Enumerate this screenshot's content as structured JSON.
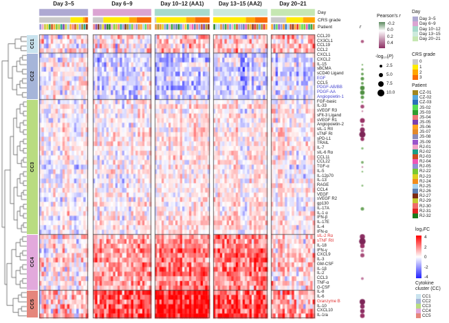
{
  "figure": {
    "group_titles": [
      "Day 3~5",
      "Day 6~9",
      "Day 10~12 (AA1)",
      "Day 13~15 (AA2)",
      "Day 20~21"
    ],
    "annotation_labels": {
      "day": "Day",
      "crs": "CRS grade",
      "patient": "Patient"
    },
    "r_column_header": "r",
    "day_colors": [
      "#aea9d2",
      "#dba4d2",
      "#a7dacc",
      "#cdeadd",
      "#c6e7b2"
    ],
    "crs_colors": {
      "0": "#c9c9c9",
      "1": "#ffec00",
      "2": "#ffa500",
      "3": "#f96b05"
    },
    "clusters": [
      {
        "id": "CC1",
        "color": "#c9e3ee",
        "start": 0,
        "end": 4
      },
      {
        "id": "CC2",
        "color": "#a6b5d9",
        "start": 4,
        "end": 14
      },
      {
        "id": "CC3",
        "color": "#b9dc81",
        "start": 14,
        "end": 43
      },
      {
        "id": "CC4",
        "color": "#e2a9dc",
        "start": 43,
        "end": 55
      },
      {
        "id": "CC5",
        "color": "#e5867c",
        "start": 55,
        "end": 61
      }
    ],
    "rows": [
      {
        "label": "CCL20",
        "color": "#1a1a1a",
        "dot": null
      },
      {
        "label": "CX3CL1",
        "color": "#1a1a1a",
        "dot": {
          "fill": "#b05c85",
          "d": 4.5
        }
      },
      {
        "label": "CCL19",
        "color": "#1a1a1a",
        "dot": null
      },
      {
        "label": "CCL2",
        "color": "#1a1a1a",
        "dot": null
      },
      {
        "label": "CXCL1",
        "color": "#1a1a1a",
        "dot": null
      },
      {
        "label": "CXCL2",
        "color": "#1a1a1a",
        "dot": null
      },
      {
        "label": "IL-15",
        "color": "#1a1a1a",
        "dot": {
          "fill": "#8fbf7f",
          "d": 2.5
        }
      },
      {
        "label": "sBCMA",
        "color": "#1a1a1a",
        "dot": {
          "fill": "#7fb070",
          "d": 3.5
        }
      },
      {
        "label": "sCD40 Ligand",
        "color": "#1a1a1a",
        "dot": {
          "fill": "#6da55e",
          "d": 4
        }
      },
      {
        "label": "EGF",
        "color": "#4343cf",
        "dot": {
          "fill": "#5f9e50",
          "d": 5
        }
      },
      {
        "label": "CCL5",
        "color": "#1a1a1a",
        "dot": {
          "fill": "#6da55e",
          "d": 4
        }
      },
      {
        "label": "PDGF-AB/BB",
        "color": "#4343cf",
        "dot": {
          "fill": "#4f8f42",
          "d": 6.5
        }
      },
      {
        "label": "PDGF-AA",
        "color": "#4343cf",
        "dot": {
          "fill": "#4f8f42",
          "d": 6.5
        }
      },
      {
        "label": "Angiopoietin-1",
        "color": "#4343cf",
        "dot": {
          "fill": "#5f9e50",
          "d": 5
        }
      },
      {
        "label": "FGF-basic",
        "color": "#1a1a1a",
        "dot": {
          "fill": "#8fbf7f",
          "d": 3
        }
      },
      {
        "label": "IL-33",
        "color": "#1a1a1a",
        "dot": {
          "fill": "#a84f7a",
          "d": 5.5
        }
      },
      {
        "label": "sVEGF R3",
        "color": "#1a1a1a",
        "dot": {
          "fill": "#c98aa8",
          "d": 2.5
        }
      },
      {
        "label": "sFlt-3 Ligand",
        "color": "#1a1a1a",
        "dot": null
      },
      {
        "label": "sVEGF R1",
        "color": "#1a1a1a",
        "dot": {
          "fill": "#993366",
          "d": 7
        }
      },
      {
        "label": "Angiopoietin-2",
        "color": "#1a1a1a",
        "dot": {
          "fill": "#b05c85",
          "d": 3.5
        }
      },
      {
        "label": "sIL-1 RII",
        "color": "#1a1a1a",
        "dot": {
          "fill": "#8c2f63",
          "d": 7
        }
      },
      {
        "label": "sTNF RI",
        "color": "#1a1a1a",
        "dot": {
          "fill": "#7c2556",
          "d": 9
        }
      },
      {
        "label": "sPD-L1",
        "color": "#1a1a1a",
        "dot": {
          "fill": "#993366",
          "d": 5.5
        }
      },
      {
        "label": "TRAIL",
        "color": "#1a1a1a",
        "dot": null
      },
      {
        "label": "IL-7",
        "color": "#1a1a1a",
        "dot": {
          "fill": "#8fbf7f",
          "d": 3.5
        }
      },
      {
        "label": "sIL-6 Rα",
        "color": "#1a1a1a",
        "dot": null
      },
      {
        "label": "CCL11",
        "color": "#1a1a1a",
        "dot": null
      },
      {
        "label": "CCL22",
        "color": "#1a1a1a",
        "dot": {
          "fill": "#7fb070",
          "d": 4
        }
      },
      {
        "label": "TGF-α",
        "color": "#1a1a1a",
        "dot": {
          "fill": "#c98aa8",
          "d": 2.5
        }
      },
      {
        "label": "IL-5",
        "color": "#1a1a1a",
        "dot": {
          "fill": "#8fbf7f",
          "d": 2.5
        }
      },
      {
        "label": "IL-12p70",
        "color": "#1a1a1a",
        "dot": null
      },
      {
        "label": "IL-13",
        "color": "#1a1a1a",
        "dot": null
      },
      {
        "label": "RAGE",
        "color": "#1a1a1a",
        "dot": {
          "fill": "#8fbf7f",
          "d": 3
        }
      },
      {
        "label": "CCL4",
        "color": "#1a1a1a",
        "dot": null
      },
      {
        "label": "VEGF",
        "color": "#1a1a1a",
        "dot": null
      },
      {
        "label": "sVEGF R2",
        "color": "#1a1a1a",
        "dot": null
      },
      {
        "label": "gp130",
        "color": "#1a1a1a",
        "dot": null
      },
      {
        "label": "IL-17A",
        "color": "#1a1a1a",
        "dot": {
          "fill": "#6da55e",
          "d": 5
        }
      },
      {
        "label": "IL-1 α",
        "color": "#1a1a1a",
        "dot": null
      },
      {
        "label": "IFN-β",
        "color": "#1a1a1a",
        "dot": null
      },
      {
        "label": "IL-17E",
        "color": "#1a1a1a",
        "dot": null
      },
      {
        "label": "IL-4",
        "color": "#1a1a1a",
        "dot": null
      },
      {
        "label": "IFN-α",
        "color": "#1a1a1a",
        "dot": null
      },
      {
        "label": "sIL-2 Rα",
        "color": "#e03030",
        "dot": {
          "fill": "#8c2f63",
          "d": 7.5
        }
      },
      {
        "label": "sTNF RII",
        "color": "#e03030",
        "dot": {
          "fill": "#7c2556",
          "d": 9.5
        }
      },
      {
        "label": "IL-18",
        "color": "#1a1a1a",
        "dot": {
          "fill": "#993366",
          "d": 6.5
        }
      },
      {
        "label": "IFN-γ",
        "color": "#1a1a1a",
        "dot": {
          "fill": "#c27ba0",
          "d": 4.5
        }
      },
      {
        "label": "CXCL9",
        "color": "#1a1a1a",
        "dot": {
          "fill": "#a84f7a",
          "d": 6
        }
      },
      {
        "label": "IL-3",
        "color": "#1a1a1a",
        "dot": null
      },
      {
        "label": "GM-CSF",
        "color": "#1a1a1a",
        "dot": null
      },
      {
        "label": "IL-1β",
        "color": "#1a1a1a",
        "dot": null
      },
      {
        "label": "IL-2",
        "color": "#1a1a1a",
        "dot": null
      },
      {
        "label": "CCL3",
        "color": "#1a1a1a",
        "dot": {
          "fill": "#c27ba0",
          "d": 4
        }
      },
      {
        "label": "TNF-α",
        "color": "#1a1a1a",
        "dot": null
      },
      {
        "label": "G-CSF",
        "color": "#1a1a1a",
        "dot": null
      },
      {
        "label": "IL-8",
        "color": "#1a1a1a",
        "dot": null
      },
      {
        "label": "IL-6",
        "color": "#1a1a1a",
        "dot": null
      },
      {
        "label": "Granzyme B",
        "color": "#e03030",
        "dot": {
          "fill": "#7c2556",
          "d": 8
        }
      },
      {
        "label": "IL-10",
        "color": "#1a1a1a",
        "dot": {
          "fill": "#8c2f63",
          "d": 6.5
        }
      },
      {
        "label": "CXCL10",
        "color": "#1a1a1a",
        "dot": {
          "fill": "#8c2f63",
          "d": 6.5
        }
      },
      {
        "label": "IL-1ra",
        "color": "#1a1a1a",
        "dot": {
          "fill": "#993366",
          "d": 6.5
        }
      }
    ]
  },
  "legends": {
    "pearson": {
      "title_main": "Pearson's",
      "title_r": "r",
      "ticks": [
        "-0.2",
        "0.0",
        "0.2",
        "0.4"
      ],
      "top_color": "#5d8a60",
      "mid_color": "#ffffff",
      "bottom_color": "#8c2f63"
    },
    "neglogp": {
      "title_pre": "-log₁₀(",
      "title_p": "P",
      "title_post": ")",
      "items": [
        {
          "label": "2.5",
          "d": 4
        },
        {
          "label": "5.0",
          "d": 6
        },
        {
          "label": "7.5",
          "d": 8
        },
        {
          "label": "10.0",
          "d": 10
        }
      ]
    },
    "day": {
      "title": "Day",
      "items": [
        {
          "label": "Day 3~5",
          "color": "#aea9d2"
        },
        {
          "label": "Day 6~9",
          "color": "#dba4d2"
        },
        {
          "label": "Day 10~12",
          "color": "#a7dacc"
        },
        {
          "label": "Day 13~15",
          "color": "#cdeadd"
        },
        {
          "label": "Day 20~21",
          "color": "#c6e7b2"
        }
      ]
    },
    "crs": {
      "title": "CRS grade",
      "items": [
        {
          "label": "0",
          "color": "#c9c9c9"
        },
        {
          "label": "1",
          "color": "#ffec00"
        },
        {
          "label": "2",
          "color": "#ffa500"
        },
        {
          "label": "3",
          "color": "#f96b05"
        }
      ]
    },
    "patient": {
      "title": "Patient",
      "items": [
        {
          "label": "CZ-01",
          "color": "#a1861f"
        },
        {
          "label": "CZ-02",
          "color": "#56a8dd"
        },
        {
          "label": "CZ-03",
          "color": "#2a6fbb"
        },
        {
          "label": "JS-02",
          "color": "#55dd55"
        },
        {
          "label": "JS-03",
          "color": "#2f9e2f"
        },
        {
          "label": "JS-04",
          "color": "#ee7777"
        },
        {
          "label": "JS-05",
          "color": "#7a3fb0"
        },
        {
          "label": "JS-06",
          "color": "#ffa21f"
        },
        {
          "label": "JS-07",
          "color": "#e2882a"
        },
        {
          "label": "JS-08",
          "color": "#8a8ab8"
        },
        {
          "label": "JS-09",
          "color": "#9955cc"
        },
        {
          "label": "RJ-01",
          "color": "#f2a3c6"
        },
        {
          "label": "RJ-02",
          "color": "#1b9e86"
        },
        {
          "label": "RJ-03",
          "color": "#cc4d1d"
        },
        {
          "label": "RJ-04",
          "color": "#ee55b5"
        },
        {
          "label": "RJ-05",
          "color": "#9090d5"
        },
        {
          "label": "RJ-22",
          "color": "#77c832"
        },
        {
          "label": "RJ-23",
          "color": "#ddd01f"
        },
        {
          "label": "RJ-24",
          "color": "#f28c1c"
        },
        {
          "label": "RJ-25",
          "color": "#a9d3ee"
        },
        {
          "label": "RJ-26",
          "color": "#5b7cb0"
        },
        {
          "label": "RJ-27",
          "color": "#7c2a12"
        },
        {
          "label": "RJ-29",
          "color": "#c3c832"
        },
        {
          "label": "RJ-30",
          "color": "#f06a6a"
        },
        {
          "label": "RJ-31",
          "color": "#e02222"
        },
        {
          "label": "RJ-32",
          "color": "#1d7a1d"
        }
      ]
    },
    "log2fc": {
      "title": "log₂FC",
      "ticks": [
        "4",
        "2",
        "0",
        "-2",
        "-4"
      ],
      "pos_color": "#ff0000",
      "mid_color": "#ffffff",
      "neg_color": "#2222ff"
    },
    "cc": {
      "title_line1": "Cytokine",
      "title_line2": "cluster (CC)",
      "items": [
        {
          "label": "CC1",
          "color": "#c9e3ee"
        },
        {
          "label": "CC2",
          "color": "#a6b5d9"
        },
        {
          "label": "CC3",
          "color": "#b9dc81"
        },
        {
          "label": "CC4",
          "color": "#e2a9dc"
        },
        {
          "label": "CC5",
          "color": "#e5867c"
        }
      ]
    }
  },
  "chart_data": {
    "type": "heatmap",
    "title": "Serum cytokine log2 fold-change heatmap by post-infusion day window, rows clustered into cytokine clusters CC1-CC5",
    "column_groups": [
      {
        "label": "Day 3~5",
        "n_samples": 21,
        "crs_grade_fractions": {
          "0": 0.64,
          "1": 0.26,
          "2": 0.04,
          "3": 0.06
        }
      },
      {
        "label": "Day 6~9",
        "n_samples": 26,
        "crs_grade_fractions": {
          "0": 0.18,
          "1": 0.44,
          "2": 0.13,
          "3": 0.25
        }
      },
      {
        "label": "Day 10~12 (AA1)",
        "n_samples": 24,
        "crs_grade_fractions": {
          "0": 0.03,
          "1": 0.54,
          "2": 0.16,
          "3": 0.27
        }
      },
      {
        "label": "Day 13~15 (AA2)",
        "n_samples": 24,
        "crs_grade_fractions": {
          "0": 0.0,
          "1": 0.6,
          "2": 0.17,
          "3": 0.23
        }
      },
      {
        "label": "Day 20~21",
        "n_samples": 19,
        "crs_grade_fractions": {
          "0": 0.35,
          "1": 0.38,
          "2": 0.27,
          "3": 0.0
        }
      }
    ],
    "row_cluster_sizes": {
      "CC1": 4,
      "CC2": 10,
      "CC3": 29,
      "CC4": 12,
      "CC5": 6
    },
    "cell_values_note": "individual cells are not legible at screenshot scale; rendering uses per-cluster x per-day-group mean log2FC estimates below with seeded noise",
    "cluster_group_mean_log2fc": {
      "CC1": [
        0.4,
        0.3,
        0.5,
        0.3,
        0.5
      ],
      "CC2": [
        0.1,
        -0.5,
        -0.7,
        -0.6,
        -0.4
      ],
      "CC3": [
        0.1,
        0.15,
        0.35,
        0.15,
        -0.05
      ],
      "CC4": [
        0.4,
        1.1,
        1.7,
        1.4,
        0.3
      ],
      "CC5": [
        0.9,
        2.2,
        3.0,
        2.3,
        0.9
      ]
    },
    "cluster_noise_sd": {
      "CC1": 1.4,
      "CC2": 1.0,
      "CC3": 0.8,
      "CC4": 1.2,
      "CC5": 1.5
    },
    "log2fc_scale_domain": [
      -4,
      4
    ],
    "pearson_r_scale_domain": [
      -0.2,
      0.4
    ],
    "neglog10p_size_key": [
      2.5,
      5.0,
      7.5,
      10.0
    ]
  }
}
